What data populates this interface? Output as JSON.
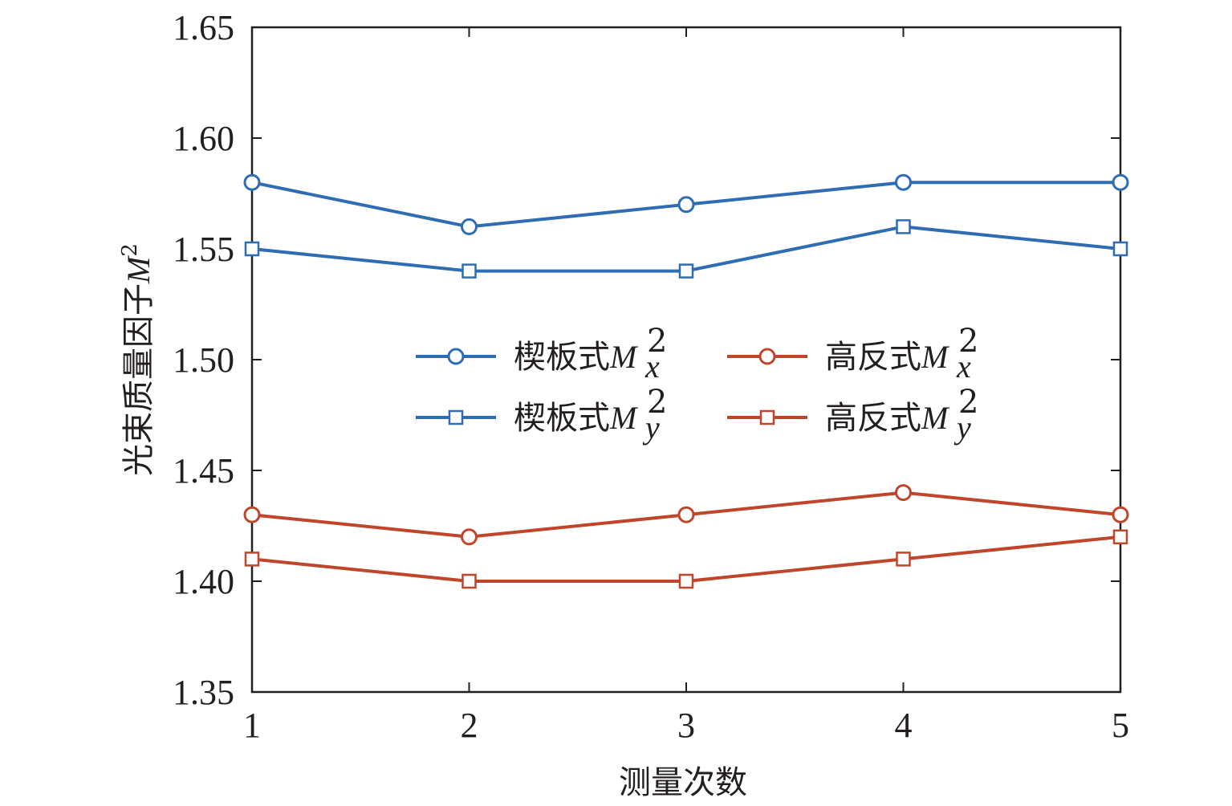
{
  "chart_data": {
    "type": "line",
    "xlabel": "测量次数",
    "ylabel": "光束质量因子M²",
    "ylabel_parts": {
      "prefix": "光束质量因子",
      "symbol": "M",
      "sup": "2"
    },
    "x": [
      1,
      2,
      3,
      4,
      5
    ],
    "xticks": [
      "1",
      "2",
      "3",
      "4",
      "5"
    ],
    "yticks": [
      "1.35",
      "1.40",
      "1.45",
      "1.50",
      "1.55",
      "1.60",
      "1.65"
    ],
    "ytick_values": [
      1.35,
      1.4,
      1.45,
      1.5,
      1.55,
      1.6,
      1.65
    ],
    "xlim": [
      1,
      5
    ],
    "ylim": [
      1.35,
      1.65
    ],
    "grid": false,
    "legend_position": "center",
    "series": [
      {
        "name": "楔板式M²ₓ",
        "label_prefix": "楔板式",
        "label_symbol": "M",
        "label_sup": "2",
        "label_sub": "x",
        "marker": "circle",
        "color": "#2e6db4",
        "values": [
          1.58,
          1.56,
          1.57,
          1.58,
          1.58
        ]
      },
      {
        "name": "楔板式M²ᵧ",
        "label_prefix": "楔板式",
        "label_symbol": "M",
        "label_sup": "2",
        "label_sub": "y",
        "marker": "square",
        "color": "#2e6db4",
        "values": [
          1.55,
          1.54,
          1.54,
          1.56,
          1.55
        ]
      },
      {
        "name": "高反式M²ₓ",
        "label_prefix": "高反式",
        "label_symbol": "M",
        "label_sup": "2",
        "label_sub": "x",
        "marker": "circle",
        "color": "#c0462b",
        "values": [
          1.43,
          1.42,
          1.43,
          1.44,
          1.43
        ]
      },
      {
        "name": "高反式M²ᵧ",
        "label_prefix": "高反式",
        "label_symbol": "M",
        "label_sup": "2",
        "label_sub": "y",
        "marker": "square",
        "color": "#c0462b",
        "values": [
          1.41,
          1.4,
          1.4,
          1.41,
          1.42
        ]
      }
    ]
  }
}
